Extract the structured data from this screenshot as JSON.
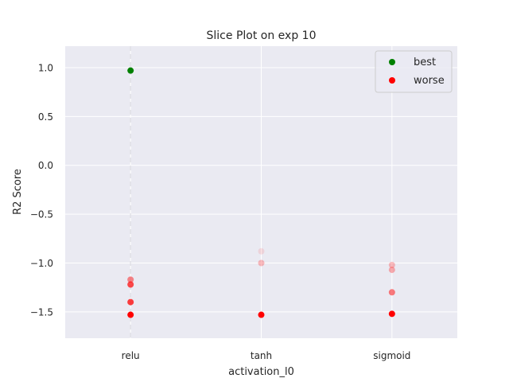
{
  "chart_data": {
    "type": "scatter",
    "title": "Slice Plot on exp 10",
    "xlabel": "activation_l0",
    "ylabel": "R2 Score",
    "categories": [
      "relu",
      "tanh",
      "sigmoid"
    ],
    "ylim": [
      -1.77,
      1.22
    ],
    "yticks": [
      1.0,
      0.5,
      0.0,
      -0.5,
      -1.0,
      -1.5
    ],
    "ytick_labels": [
      "1.0",
      "0.5",
      "0.0",
      "−0.5",
      "−1.0",
      "−1.5"
    ],
    "grid": true,
    "legend_position": "top-right",
    "background": "#eaeaf2",
    "series": [
      {
        "name": "best",
        "color": "#008000",
        "points": [
          {
            "x": "relu",
            "y": 0.97,
            "alpha": 1.0
          }
        ]
      },
      {
        "name": "worse",
        "color": "#ff0000",
        "points": [
          {
            "x": "relu",
            "y": -1.17,
            "alpha": 0.45
          },
          {
            "x": "relu",
            "y": -1.22,
            "alpha": 0.7
          },
          {
            "x": "relu",
            "y": -1.4,
            "alpha": 0.75
          },
          {
            "x": "relu",
            "y": -1.53,
            "alpha": 1.0
          },
          {
            "x": "tanh",
            "y": -0.88,
            "alpha": 0.1
          },
          {
            "x": "tanh",
            "y": -1.0,
            "alpha": 0.25
          },
          {
            "x": "tanh",
            "y": -1.53,
            "alpha": 1.0
          },
          {
            "x": "sigmoid",
            "y": -1.02,
            "alpha": 0.25
          },
          {
            "x": "sigmoid",
            "y": -1.07,
            "alpha": 0.3
          },
          {
            "x": "sigmoid",
            "y": -1.3,
            "alpha": 0.5
          },
          {
            "x": "sigmoid",
            "y": -1.52,
            "alpha": 1.0
          }
        ]
      }
    ],
    "guide_lines": [
      {
        "x": "relu",
        "y_from": -1.77,
        "y_to": 1.22,
        "color": "#ffffff",
        "style": "dashed",
        "alpha": 0.6
      }
    ]
  }
}
